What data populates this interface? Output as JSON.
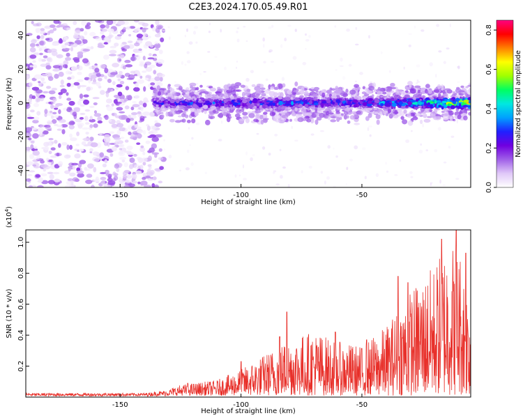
{
  "title": "C2E3.2024.170.05.49.R01",
  "chart_data": [
    {
      "type": "heatmap",
      "xlabel": "Height of straight line (km)",
      "ylabel": "Frequency (Hz)",
      "xlim": [
        -189,
        -5
      ],
      "ylim": [
        -50,
        49
      ],
      "xticks": [
        -150,
        -100,
        -50
      ],
      "xtick_labels": [
        "-150",
        "-100",
        "-50"
      ],
      "yticks": [
        -40,
        -20,
        0,
        20,
        40
      ],
      "ytick_labels": [
        "-40",
        "-20",
        "0",
        "20",
        "40"
      ],
      "colorbar": {
        "label": "Normalized spectral amplitude",
        "range": [
          0,
          0.85
        ],
        "ticks": [
          0,
          0.2,
          0.4,
          0.6,
          0.8
        ],
        "tick_labels": [
          "0.0",
          "0.2",
          "0.4",
          "0.6",
          "0.8"
        ],
        "colormap": [
          "#ffffff",
          "#e0c8f8",
          "#a060e8",
          "#7000e0",
          "#2020ff",
          "#00a0ff",
          "#00e8e0",
          "#00ff60",
          "#a0ff00",
          "#ffff00",
          "#ff8000",
          "#ff0000",
          "#ff0080"
        ]
      },
      "noise_region_x": [
        -189,
        -132
      ],
      "signal_band": {
        "x_start": -136,
        "x_end": -5,
        "center_hz": 0,
        "halfwidth_hz": 4,
        "amplitude_trend": [
          [
            -136,
            0.3
          ],
          [
            -100,
            0.35
          ],
          [
            -50,
            0.38
          ],
          [
            -25,
            0.5
          ],
          [
            -5,
            0.8
          ]
        ]
      },
      "grid": false
    },
    {
      "type": "line",
      "xlabel": "Height of straight line (km)",
      "ylabel": "SNR (10 * v/v)",
      "y_multiplier": "(x10",
      "y_multiplier_exp": "4",
      "y_multiplier_close": ")",
      "xlim": [
        -189,
        -5
      ],
      "ylim": [
        0,
        1.08
      ],
      "xticks": [
        -150,
        -100,
        -50
      ],
      "xtick_labels": [
        "-150",
        "-100",
        "-50"
      ],
      "yticks": [
        0.2,
        0.4,
        0.6,
        0.8,
        1.0
      ],
      "ytick_labels": [
        "0.2",
        "0.4",
        "0.6",
        "0.8",
        "1.0"
      ],
      "color": "#e8302a",
      "envelope_x": [
        -189,
        -140,
        -130,
        -125,
        -120,
        -110,
        -100,
        -90,
        -80,
        -70,
        -60,
        -50,
        -40,
        -30,
        -20,
        -15,
        -10,
        -5
      ],
      "envelope_y": [
        0.02,
        0.02,
        0.04,
        0.07,
        0.08,
        0.1,
        0.17,
        0.27,
        0.37,
        0.42,
        0.35,
        0.32,
        0.45,
        0.68,
        0.85,
        1.0,
        1.0,
        0.6
      ],
      "peaks": [
        {
          "x": -122,
          "y": 0.09
        },
        {
          "x": -100,
          "y": 0.23
        },
        {
          "x": -84,
          "y": 0.39
        },
        {
          "x": -81,
          "y": 0.55
        },
        {
          "x": -61,
          "y": 0.42
        },
        {
          "x": -48,
          "y": 0.37
        },
        {
          "x": -35,
          "y": 0.78
        },
        {
          "x": -31,
          "y": 0.74
        },
        {
          "x": -17,
          "y": 1.02
        },
        {
          "x": -11,
          "y": 1.08
        },
        {
          "x": -7,
          "y": 0.93
        }
      ],
      "grid": false
    }
  ]
}
